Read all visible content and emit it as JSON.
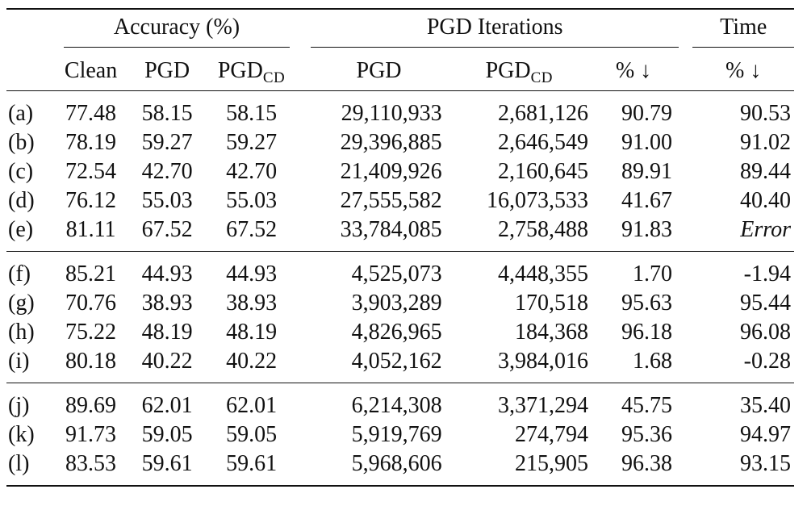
{
  "header": {
    "group_accuracy": "Accuracy (%)",
    "group_pgd_iterations": "PGD Iterations",
    "group_time": "Time",
    "col_clean": "Clean",
    "col_pgd": "PGD",
    "col_pgdcd_base": "PGD",
    "col_pgdcd_sub": "CD",
    "col_iter_pgd": "PGD",
    "col_iter_pgdcd_base": "PGD",
    "col_iter_pgdcd_sub": "CD",
    "col_iter_pct": "% ↓",
    "col_time_pct": "% ↓"
  },
  "rows": [
    {
      "label": "(a)",
      "clean": "77.48",
      "pgd": "58.15",
      "pgdcd": "58.15",
      "iter_pgd": "29,110,933",
      "iter_pgdcd": "2,681,126",
      "iter_pct": "90.79",
      "time_pct": "90.53"
    },
    {
      "label": "(b)",
      "clean": "78.19",
      "pgd": "59.27",
      "pgdcd": "59.27",
      "iter_pgd": "29,396,885",
      "iter_pgdcd": "2,646,549",
      "iter_pct": "91.00",
      "time_pct": "91.02"
    },
    {
      "label": "(c)",
      "clean": "72.54",
      "pgd": "42.70",
      "pgdcd": "42.70",
      "iter_pgd": "21,409,926",
      "iter_pgdcd": "2,160,645",
      "iter_pct": "89.91",
      "time_pct": "89.44"
    },
    {
      "label": "(d)",
      "clean": "76.12",
      "pgd": "55.03",
      "pgdcd": "55.03",
      "iter_pgd": "27,555,582",
      "iter_pgdcd": "16,073,533",
      "iter_pct": "41.67",
      "time_pct": "40.40"
    },
    {
      "label": "(e)",
      "clean": "81.11",
      "pgd": "67.52",
      "pgdcd": "67.52",
      "iter_pgd": "33,784,085",
      "iter_pgdcd": "2,758,488",
      "iter_pct": "91.83",
      "time_pct": "Error"
    },
    {
      "label": "(f)",
      "clean": "85.21",
      "pgd": "44.93",
      "pgdcd": "44.93",
      "iter_pgd": "4,525,073",
      "iter_pgdcd": "4,448,355",
      "iter_pct": "1.70",
      "time_pct": "-1.94"
    },
    {
      "label": "(g)",
      "clean": "70.76",
      "pgd": "38.93",
      "pgdcd": "38.93",
      "iter_pgd": "3,903,289",
      "iter_pgdcd": "170,518",
      "iter_pct": "95.63",
      "time_pct": "95.44"
    },
    {
      "label": "(h)",
      "clean": "75.22",
      "pgd": "48.19",
      "pgdcd": "48.19",
      "iter_pgd": "4,826,965",
      "iter_pgdcd": "184,368",
      "iter_pct": "96.18",
      "time_pct": "96.08"
    },
    {
      "label": "(i)",
      "clean": "80.18",
      "pgd": "40.22",
      "pgdcd": "40.22",
      "iter_pgd": "4,052,162",
      "iter_pgdcd": "3,984,016",
      "iter_pct": "1.68",
      "time_pct": "-0.28"
    },
    {
      "label": "(j)",
      "clean": "89.69",
      "pgd": "62.01",
      "pgdcd": "62.01",
      "iter_pgd": "6,214,308",
      "iter_pgdcd": "3,371,294",
      "iter_pct": "45.75",
      "time_pct": "35.40"
    },
    {
      "label": "(k)",
      "clean": "91.73",
      "pgd": "59.05",
      "pgdcd": "59.05",
      "iter_pgd": "5,919,769",
      "iter_pgdcd": "274,794",
      "iter_pct": "95.36",
      "time_pct": "94.97"
    },
    {
      "label": "(l)",
      "clean": "83.53",
      "pgd": "59.61",
      "pgdcd": "59.61",
      "iter_pgd": "5,968,606",
      "iter_pgdcd": "215,905",
      "iter_pct": "96.38",
      "time_pct": "93.15"
    }
  ],
  "italic_cells": [
    "Error"
  ]
}
